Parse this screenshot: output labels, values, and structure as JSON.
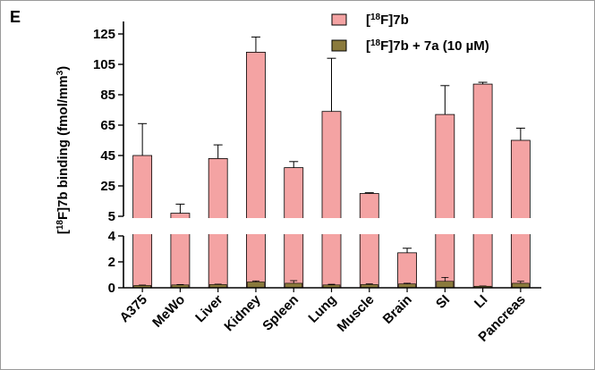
{
  "panel_label": "E",
  "colors": {
    "series1": "#f4a3a3",
    "series2": "#8a7a3c",
    "axis": "#000000"
  },
  "chart_data": {
    "type": "bar",
    "ylabel": "[18F]7b binding (fmol/mm3)",
    "ylabel_parts": {
      "open": "[",
      "sup1": "18",
      "mid": "F]7b binding (fmol/mm",
      "sup2": "3",
      "close": ")"
    },
    "y_axis_break": {
      "lower_range": [
        0,
        4
      ],
      "upper_range": [
        5,
        125
      ],
      "lower_ticks": [
        "0",
        "2",
        "4"
      ],
      "upper_ticks": [
        "5",
        "25",
        "45",
        "65",
        "85",
        "105",
        "125"
      ]
    },
    "categories": [
      "A375",
      "MeWo",
      "Liver",
      "Kidney",
      "Spleen",
      "Lung",
      "Muscle",
      "Brain",
      "SI",
      "LI",
      "Pancreas"
    ],
    "series": [
      {
        "name": "[18F]7b",
        "legend": {
          "open": "[",
          "sup": "18",
          "rest": "F]7b"
        },
        "values": [
          45,
          7,
          43,
          113,
          37,
          74,
          20,
          2.7,
          72,
          92,
          55
        ],
        "errors": [
          21,
          6,
          9,
          10,
          4,
          35,
          0.5,
          0.35,
          19,
          1.2,
          8
        ]
      },
      {
        "name": "[18F]7b + 7a (10 µM)",
        "legend": {
          "open": "[",
          "sup": "18",
          "rest": "F]7b + 7a (10 µM)"
        },
        "values": [
          0.18,
          0.22,
          0.25,
          0.45,
          0.35,
          0.22,
          0.25,
          0.3,
          0.5,
          0.12,
          0.35
        ],
        "errors": [
          0.03,
          0.03,
          0.03,
          0.08,
          0.2,
          0.05,
          0.05,
          0.05,
          0.3,
          0.02,
          0.15
        ]
      }
    ],
    "legend_position": "top-right",
    "grid": false
  }
}
